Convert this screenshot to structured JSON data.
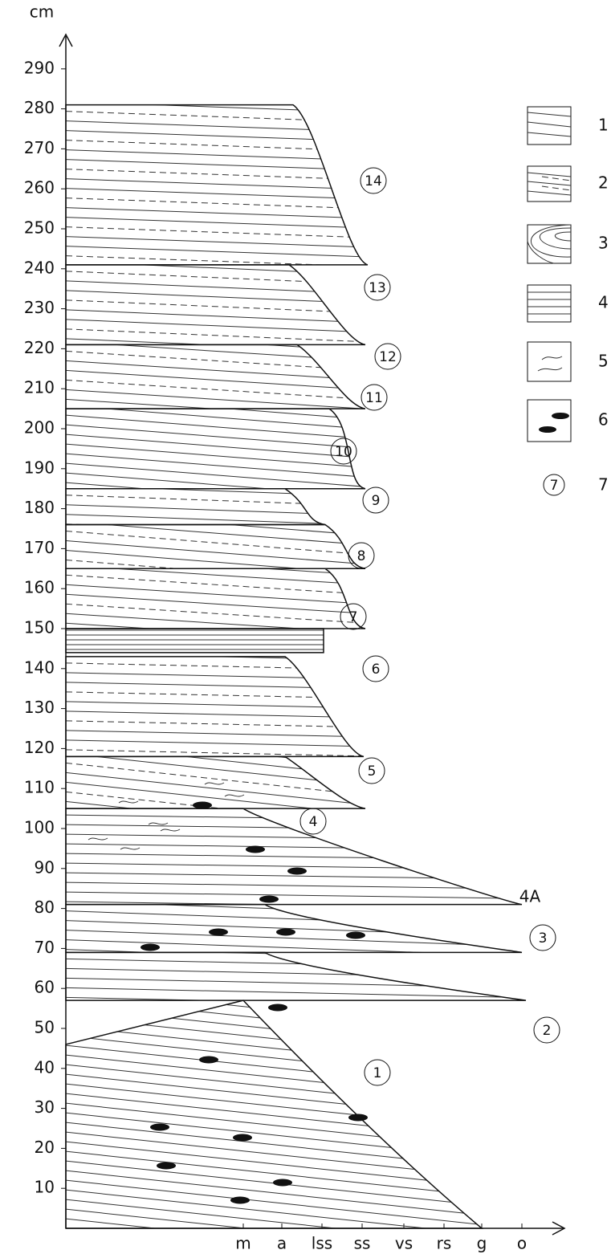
{
  "y_axis": {
    "unit": "cm",
    "ticks": [
      10,
      20,
      30,
      40,
      50,
      60,
      70,
      80,
      90,
      100,
      110,
      120,
      130,
      140,
      150,
      160,
      170,
      180,
      190,
      200,
      210,
      220,
      230,
      240,
      250,
      260,
      270,
      280,
      290
    ]
  },
  "x_axis": {
    "ticks": [
      "m",
      "a",
      "lss",
      "ss",
      "vs",
      "rs",
      "g",
      "o"
    ]
  },
  "units": [
    "1",
    "2",
    "3",
    "4",
    "4A",
    "5",
    "6",
    "7",
    "8",
    "9",
    "10",
    "11",
    "12",
    "13",
    "14"
  ],
  "legend": [
    "1",
    "2",
    "3",
    "4",
    "5",
    "6",
    "7"
  ]
}
